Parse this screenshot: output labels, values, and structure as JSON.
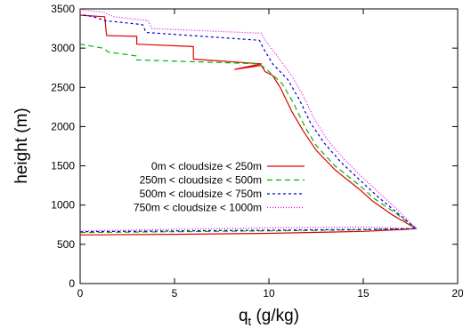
{
  "chart_data": {
    "type": "line",
    "title": "",
    "xlabel_main": "q",
    "xlabel_sub": "t",
    "xlabel_unit": " (g/kg)",
    "ylabel": "height (m)",
    "xlim": [
      0,
      20
    ],
    "ylim": [
      0,
      3500
    ],
    "xticks": [
      "0",
      "5",
      "10",
      "15",
      "20"
    ],
    "yticks": [
      "0",
      "500",
      "1000",
      "1500",
      "2000",
      "2500",
      "3000",
      "3500"
    ],
    "grid": false,
    "legend_position": "left-center",
    "series": [
      {
        "name": "0m < cloudsize < 250m",
        "color": "#e00000",
        "dash": "solid",
        "points": [
          [
            0,
            620
          ],
          [
            5,
            628
          ],
          [
            10,
            640
          ],
          [
            15,
            665
          ],
          [
            17.2,
            690
          ],
          [
            17.8,
            700
          ],
          [
            16.5,
            880
          ],
          [
            15.5,
            1050
          ],
          [
            14.8,
            1200
          ],
          [
            13.5,
            1450
          ],
          [
            12.5,
            1700
          ],
          [
            11.8,
            1950
          ],
          [
            11.2,
            2200
          ],
          [
            10.6,
            2500
          ],
          [
            10.2,
            2650
          ],
          [
            9.8,
            2700
          ],
          [
            9.6,
            2780
          ],
          [
            8.2,
            2730
          ],
          [
            9.6,
            2800
          ],
          [
            6.0,
            2860
          ],
          [
            6.0,
            3020
          ],
          [
            3.0,
            3050
          ],
          [
            3.0,
            3150
          ],
          [
            1.4,
            3160
          ],
          [
            1.3,
            3400
          ],
          [
            0,
            3420
          ]
        ]
      },
      {
        "name": "250m < cloudsize < 500m",
        "color": "#00b400",
        "dash": "6,4",
        "points": [
          [
            0,
            650
          ],
          [
            5,
            660
          ],
          [
            10,
            672
          ],
          [
            15,
            685
          ],
          [
            17.8,
            700
          ],
          [
            16.7,
            900
          ],
          [
            15.6,
            1080
          ],
          [
            14.8,
            1250
          ],
          [
            13.5,
            1500
          ],
          [
            12.5,
            1760
          ],
          [
            11.9,
            2000
          ],
          [
            11.3,
            2300
          ],
          [
            10.7,
            2550
          ],
          [
            10.0,
            2700
          ],
          [
            9.5,
            2800
          ],
          [
            3.0,
            2850
          ],
          [
            3.0,
            2900
          ],
          [
            1.5,
            2950
          ],
          [
            1.2,
            3000
          ],
          [
            0,
            3050
          ]
        ]
      },
      {
        "name": "500m < cloudsize < 750m",
        "color": "#0000d0",
        "dash": "3,3",
        "points": [
          [
            0,
            660
          ],
          [
            5,
            670
          ],
          [
            10,
            680
          ],
          [
            15,
            690
          ],
          [
            17.8,
            700
          ],
          [
            16.8,
            900
          ],
          [
            15.8,
            1100
          ],
          [
            14.9,
            1300
          ],
          [
            13.8,
            1550
          ],
          [
            12.9,
            1800
          ],
          [
            12.2,
            2050
          ],
          [
            11.6,
            2350
          ],
          [
            11.0,
            2600
          ],
          [
            10.2,
            2800
          ],
          [
            9.7,
            3000
          ],
          [
            9.5,
            3100
          ],
          [
            3.5,
            3200
          ],
          [
            3.3,
            3300
          ],
          [
            1.3,
            3350
          ],
          [
            0.7,
            3400
          ],
          [
            0,
            3430
          ]
        ]
      },
      {
        "name": "750m < cloudsize < 1000m",
        "color": "#e000e0",
        "dash": "1,2",
        "points": [
          [
            0,
            670
          ],
          [
            5,
            690
          ],
          [
            10,
            710
          ],
          [
            15,
            720
          ],
          [
            17.8,
            700
          ],
          [
            16.9,
            920
          ],
          [
            16.0,
            1120
          ],
          [
            15.1,
            1320
          ],
          [
            14.0,
            1580
          ],
          [
            13.1,
            1830
          ],
          [
            12.4,
            2100
          ],
          [
            11.8,
            2400
          ],
          [
            11.2,
            2650
          ],
          [
            10.5,
            2880
          ],
          [
            9.8,
            3100
          ],
          [
            9.6,
            3190
          ],
          [
            3.8,
            3250
          ],
          [
            3.6,
            3350
          ],
          [
            1.8,
            3400
          ],
          [
            1.2,
            3460
          ],
          [
            0,
            3490
          ]
        ]
      }
    ]
  }
}
